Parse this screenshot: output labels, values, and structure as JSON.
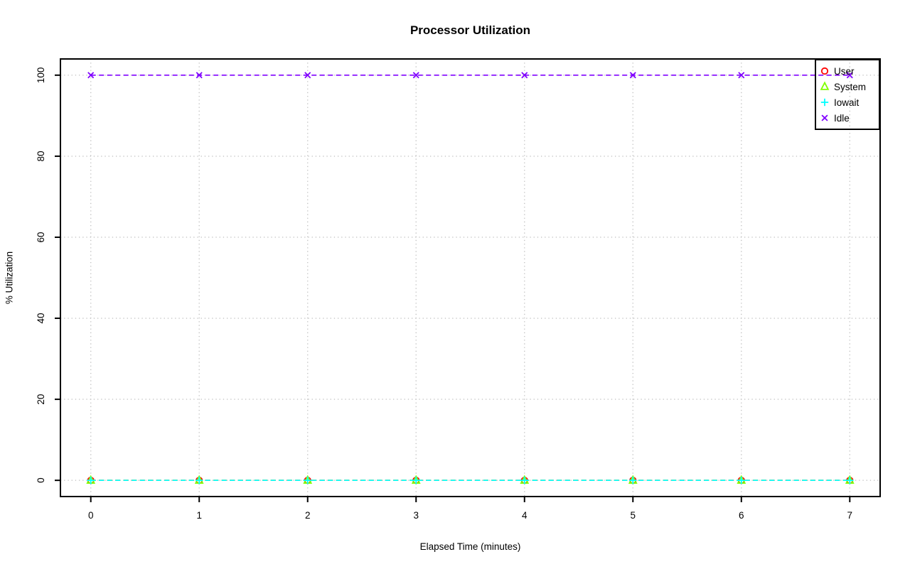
{
  "figure": {
    "background": "#ffffff",
    "grid_color": "#c4c4c4",
    "axis_color": "#000000",
    "text_color": "#000000"
  },
  "chart_data": {
    "type": "line",
    "title": "Processor Utilization",
    "xlabel": "Elapsed Time (minutes)",
    "ylabel": "% Utilization",
    "x": [
      0,
      1,
      2,
      3,
      4,
      5,
      6,
      7
    ],
    "x_ticks": [
      "0",
      "1",
      "2",
      "3",
      "4",
      "5",
      "6",
      "7"
    ],
    "y_ticks": [
      "0",
      "20",
      "40",
      "60",
      "80",
      "100"
    ],
    "xlim": [
      0,
      7
    ],
    "ylim": [
      0,
      100
    ],
    "grid": true,
    "line_style": "dashed",
    "legend_position": "topright",
    "series": [
      {
        "name": "User",
        "color": "#ff0000",
        "marker": "circle",
        "values": [
          0,
          0,
          0,
          0,
          0,
          0,
          0,
          0
        ]
      },
      {
        "name": "System",
        "color": "#80ff00",
        "marker": "triangle",
        "values": [
          0,
          0,
          0,
          0,
          0,
          0,
          0,
          0
        ]
      },
      {
        "name": "Iowait",
        "color": "#00ffff",
        "marker": "plus",
        "values": [
          0,
          0,
          0,
          0,
          0,
          0,
          0,
          0
        ]
      },
      {
        "name": "Idle",
        "color": "#8000ff",
        "marker": "x",
        "values": [
          100,
          100,
          100,
          100,
          100,
          100,
          100,
          100
        ]
      }
    ]
  }
}
